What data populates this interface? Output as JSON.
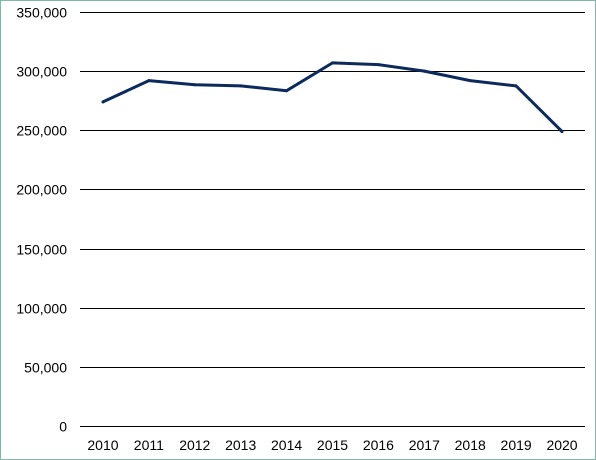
{
  "chart_data": {
    "type": "line",
    "title": "",
    "xlabel": "",
    "ylabel": "",
    "categories": [
      "2010",
      "2011",
      "2012",
      "2013",
      "2014",
      "2015",
      "2016",
      "2017",
      "2018",
      "2019",
      "2020"
    ],
    "series": [
      {
        "values": [
          274000,
          292000,
          288500,
          287500,
          283500,
          307000,
          305500,
          300000,
          292000,
          287500,
          249000
        ],
        "color": "#0d2a5c"
      }
    ],
    "ylim": [
      0,
      350000
    ],
    "yticks": [
      "0",
      "50,000",
      "100,000",
      "150,000",
      "200,000",
      "250,000",
      "300,000",
      "350,000"
    ],
    "grid": "horizontal",
    "legend": "none"
  },
  "colors": {
    "gridline": "#000000",
    "line": "#0d2a5c",
    "border": "#7fb8a8"
  }
}
